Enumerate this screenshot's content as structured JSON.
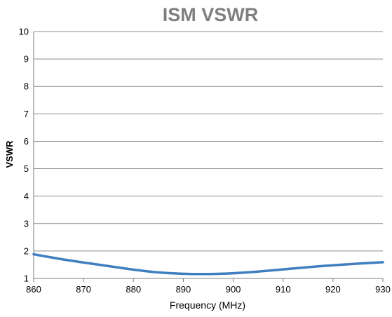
{
  "chart_data": {
    "type": "line",
    "title": "ISM VSWR",
    "xlabel": "Frequency (MHz)",
    "ylabel": "VSWR",
    "xlim": [
      860,
      930
    ],
    "ylim": [
      1,
      10
    ],
    "x_ticks": [
      "860",
      "870",
      "880",
      "890",
      "900",
      "910",
      "920",
      "930"
    ],
    "y_ticks": [
      "1",
      "2",
      "3",
      "4",
      "5",
      "6",
      "7",
      "8",
      "9",
      "10"
    ],
    "grid": "horizontal",
    "legend": "none",
    "series": [
      {
        "color": "#3f7fc0",
        "x": [
          860,
          865,
          870,
          875,
          880,
          885,
          890,
          895,
          900,
          905,
          910,
          915,
          920,
          925,
          930
        ],
        "y": [
          1.88,
          1.72,
          1.58,
          1.45,
          1.32,
          1.22,
          1.17,
          1.16,
          1.19,
          1.25,
          1.33,
          1.41,
          1.48,
          1.54,
          1.59
        ]
      }
    ]
  }
}
